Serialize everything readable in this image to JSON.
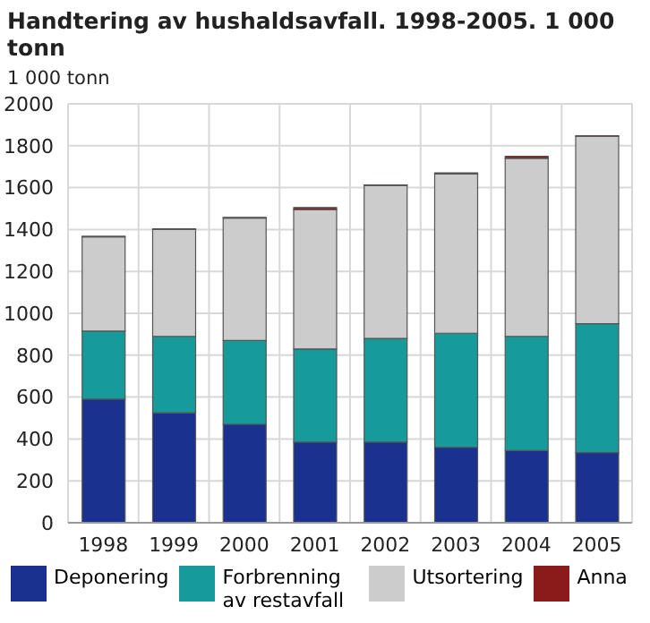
{
  "chart_data": {
    "type": "bar",
    "title": "Handtering av hushaldsavfall. 1998-2005. 1 000 tonn",
    "ylabel": "1 000 tonn",
    "categories": [
      "1998",
      "1999",
      "2000",
      "2001",
      "2002",
      "2003",
      "2004",
      "2005"
    ],
    "series": [
      {
        "name": "Deponering",
        "color": "#1a318f",
        "values": [
          590,
          525,
          470,
          385,
          385,
          360,
          345,
          335
        ]
      },
      {
        "name": "Forbrenning av restavfall",
        "color": "#179a9a",
        "values": [
          325,
          365,
          400,
          445,
          495,
          545,
          545,
          615
        ]
      },
      {
        "name": "Utsortering",
        "color": "#cccccc",
        "values": [
          450,
          510,
          585,
          665,
          730,
          760,
          850,
          895
        ]
      },
      {
        "name": "Anna",
        "color": "#8b1a1a",
        "values": [
          3,
          3,
          3,
          10,
          3,
          5,
          10,
          3
        ]
      }
    ],
    "stacked": true,
    "ylim": [
      0,
      2000
    ],
    "yticks": [
      0,
      200,
      400,
      600,
      800,
      1000,
      1200,
      1400,
      1600,
      1800,
      2000
    ],
    "grid": true,
    "legend": "bottom"
  }
}
